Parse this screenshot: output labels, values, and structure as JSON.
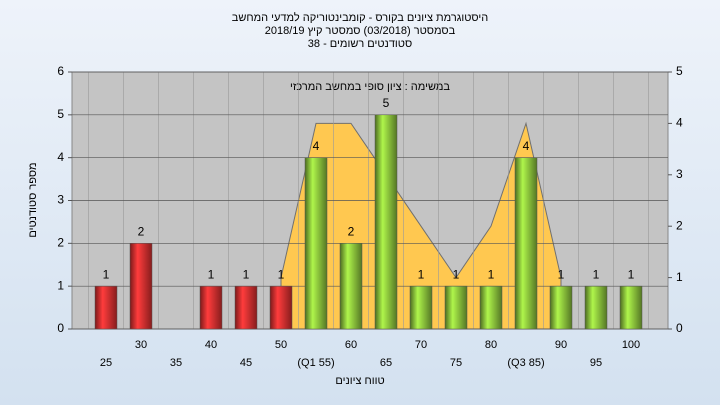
{
  "chart_data": {
    "type": "bar",
    "title": "היסטוגרמת ציונים בקורס - קומבינטוריקה למדעי המחשב",
    "subtitle": "בסמסטר  (03/2018)  סמסטר קיץ 2018/19",
    "subtitle2": "סטודנטים רשומים - 38",
    "annotation": "במשימה : ציון סופי במחשב המרכזי",
    "ylabel": "מספר סטודנטים",
    "xlabel": "טווח ציונים",
    "categories": [
      "25",
      "30",
      "35",
      "40",
      "45",
      "50",
      "(Q1 55)",
      "60",
      "65",
      "70",
      "75",
      "80",
      "(Q3 85)",
      "90",
      "95",
      "100"
    ],
    "values": [
      1,
      2,
      null,
      1,
      1,
      1,
      4,
      2,
      5,
      1,
      1,
      1,
      4,
      1,
      1,
      1
    ],
    "colors": [
      "#e03030",
      "#e03030",
      "#e03030",
      "#e03030",
      "#e03030",
      "#e03030",
      "#8cc43c",
      "#8cc43c",
      "#8cc43c",
      "#8cc43c",
      "#8cc43c",
      "#8cc43c",
      "#8cc43c",
      "#8cc43c",
      "#8cc43c",
      "#8cc43c"
    ],
    "ylim": [
      0,
      6
    ],
    "yticks": [
      0,
      1,
      2,
      3,
      4,
      5,
      6
    ],
    "y2lim": [
      0,
      5
    ],
    "y2ticks": [
      0,
      1,
      2,
      3,
      4,
      5
    ],
    "series": [
      {
        "color": "#ffc850",
        "axis": "y2",
        "values": [
          null,
          null,
          null,
          null,
          null,
          1,
          4,
          4,
          3,
          2,
          1,
          2,
          4,
          1,
          null,
          null
        ]
      }
    ],
    "grid": true
  }
}
